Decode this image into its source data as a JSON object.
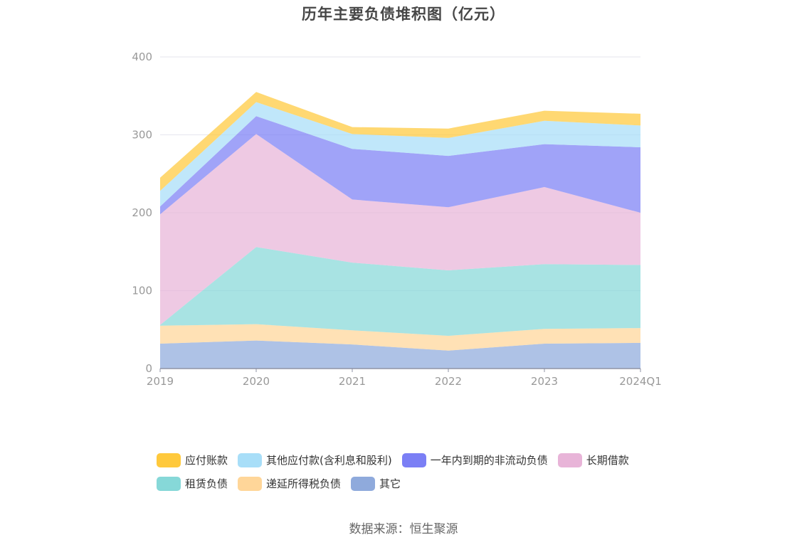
{
  "title": "历年主要负债堆积图（亿元）",
  "source": "数据来源：恒生聚源",
  "chart_data": {
    "type": "area",
    "stacked": true,
    "categories": [
      "2019",
      "2020",
      "2021",
      "2022",
      "2023",
      "2024Q1"
    ],
    "y_ticks": [
      "0",
      "100",
      "200",
      "300",
      "400"
    ],
    "ylim": [
      0,
      400
    ],
    "grid": true,
    "legend_position": "bottom",
    "series": [
      {
        "name": "其它",
        "color": "#8faadc",
        "values": [
          32,
          36,
          31,
          23,
          32,
          33
        ]
      },
      {
        "name": "递延所得税负债",
        "color": "#ffd699",
        "values": [
          23,
          21,
          18,
          19,
          19,
          19
        ]
      },
      {
        "name": "租赁负债",
        "color": "#86d8d8",
        "values": [
          1,
          99,
          87,
          84,
          83,
          81
        ]
      },
      {
        "name": "长期借款",
        "color": "#e8b4d8",
        "values": [
          142,
          145,
          81,
          81,
          99,
          67
        ]
      },
      {
        "name": "一年内到期的非流动负债",
        "color": "#7b7ff5",
        "values": [
          10,
          23,
          65,
          66,
          55,
          84
        ]
      },
      {
        "name": "其他应付款(含利息和股利)",
        "color": "#a8def8",
        "values": [
          20,
          18,
          19,
          23,
          30,
          28
        ]
      },
      {
        "name": "应付账款",
        "color": "#ffc93c",
        "values": [
          17,
          13,
          9,
          12,
          13,
          15
        ]
      }
    ]
  },
  "legend": {
    "rows": [
      [
        {
          "label": "应付账款",
          "color": "#ffc93c"
        },
        {
          "label": "其他应付款(含利息和股利)",
          "color": "#a8def8"
        },
        {
          "label": "一年内到期的非流动负债",
          "color": "#7b7ff5"
        },
        {
          "label": "长期借款",
          "color": "#e8b4d8"
        }
      ],
      [
        {
          "label": "租赁负债",
          "color": "#86d8d8"
        },
        {
          "label": "递延所得税负债",
          "color": "#ffd699"
        },
        {
          "label": "其它",
          "color": "#8faadc"
        }
      ]
    ]
  }
}
